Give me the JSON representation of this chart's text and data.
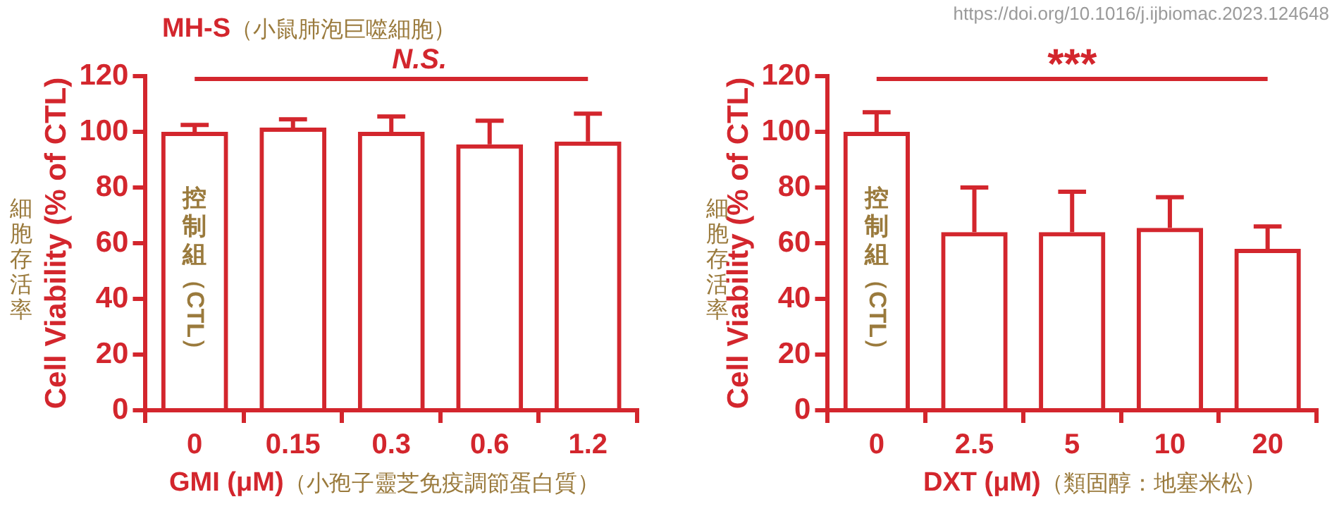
{
  "chart_data": [
    {
      "type": "bar",
      "title": "MH-S（小鼠肺泡巨噬細胞）",
      "xlabel": "GMI (μM)（小孢子靈芝免疫調節蛋白質）",
      "ylabel": "Cell Viability (% of CTL)",
      "categories": [
        "0",
        "0.15",
        "0.3",
        "0.6",
        "1.2"
      ],
      "values": [
        100,
        101.5,
        100,
        95.5,
        96.5
      ],
      "errors": [
        [
          100,
          102.5
        ],
        [
          101.5,
          104.5
        ],
        [
          100,
          105.5
        ],
        [
          95.5,
          104
        ],
        [
          96.5,
          106.5
        ]
      ],
      "color": "#d3262d",
      "ylim": [
        0,
        120
      ],
      "yticks": [
        0,
        20,
        40,
        60,
        80,
        100,
        120
      ],
      "annotations": [
        "細胞存活率",
        "N.S.",
        "控制組（CTL）"
      ]
    },
    {
      "type": "bar",
      "xlabel": "DXT (μM)（類固醇：地塞米松）",
      "ylabel": "Cell Viability (% of CTL)",
      "categories": [
        "0",
        "2.5",
        "5",
        "10",
        "20"
      ],
      "values": [
        100,
        64,
        64,
        65.5,
        58
      ],
      "errors": [
        [
          100,
          107
        ],
        [
          64,
          80
        ],
        [
          64,
          78.5
        ],
        [
          65.5,
          76.5
        ],
        [
          58,
          66
        ]
      ],
      "color": "#d3262d",
      "ylim": [
        0,
        120
      ],
      "yticks": [
        0,
        20,
        40,
        60,
        80,
        100,
        120
      ],
      "annotations": [
        "細胞存活率",
        "***",
        "控制組（CTL）",
        "https://doi.org/10.1016/j.ijbiomac.2023.124648"
      ]
    }
  ]
}
